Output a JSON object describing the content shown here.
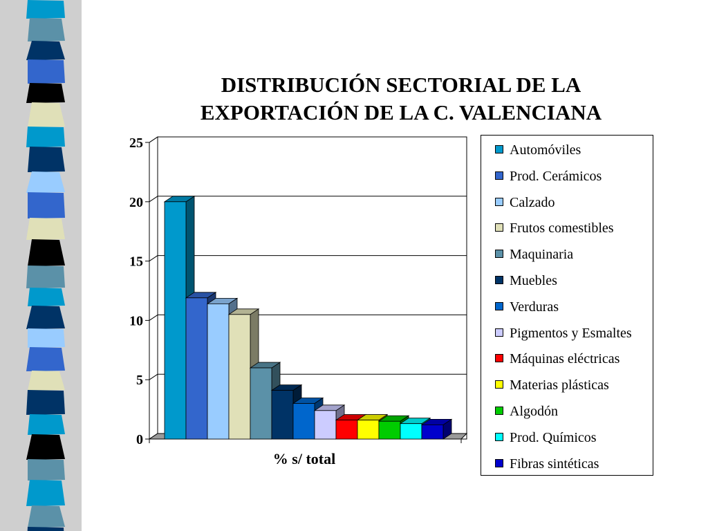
{
  "chart_data": {
    "type": "bar",
    "title": "DISTRIBUCIÓN SECTORIAL DE LA EXPORTACIÓN DE LA C. VALENCIANA",
    "title_lines": [
      "DISTRIBUCIÓN SECTORIAL DE LA",
      "EXPORTACIÓN DE LA C. VALENCIANA"
    ],
    "xlabel": "% s/ total",
    "ylabel": "",
    "ylim": [
      0,
      25
    ],
    "yticks": [
      0,
      5,
      10,
      15,
      20,
      25
    ],
    "grid": true,
    "legend_position": "right",
    "style": "3d-clustered",
    "series": [
      {
        "name": "Automóviles",
        "value": 20.0,
        "color": "#0099CC"
      },
      {
        "name": "Prod. Cerámicos",
        "value": 11.9,
        "color": "#3366CC"
      },
      {
        "name": "Calzado",
        "value": 11.4,
        "color": "#99CCFF"
      },
      {
        "name": "Frutos comestibles",
        "value": 10.5,
        "color": "#E0E0B8"
      },
      {
        "name": "Maquinaria",
        "value": 6.0,
        "color": "#5B91A8"
      },
      {
        "name": "Muebles",
        "value": 4.1,
        "color": "#003366"
      },
      {
        "name": "Verduras",
        "value": 3.0,
        "color": "#0066CC"
      },
      {
        "name": "Pigmentos y Esmaltes",
        "value": 2.4,
        "color": "#CCCCFF"
      },
      {
        "name": "Máquinas eléctricas",
        "value": 1.6,
        "color": "#FF0000"
      },
      {
        "name": "Materias plásticas",
        "value": 1.6,
        "color": "#FFFF00"
      },
      {
        "name": "Algodón",
        "value": 1.5,
        "color": "#00CC00"
      },
      {
        "name": "Prod. Químicos",
        "value": 1.3,
        "color": "#00FFFF"
      },
      {
        "name": "Fibras sintéticas",
        "value": 1.2,
        "color": "#0000CC"
      }
    ]
  },
  "decoration": {
    "strip_colors": [
      "#0099CC",
      "#5B91A8",
      "#003366",
      "#3366CC",
      "#000000",
      "#E0E0B8",
      "#0099CC",
      "#003366",
      "#99CCFF",
      "#3366CC",
      "#E0E0B8",
      "#000000",
      "#5B91A8",
      "#0099CC",
      "#003366",
      "#99CCFF",
      "#3366CC",
      "#E0E0B8",
      "#003366",
      "#0099CC",
      "#000000",
      "#5B91A8"
    ]
  }
}
